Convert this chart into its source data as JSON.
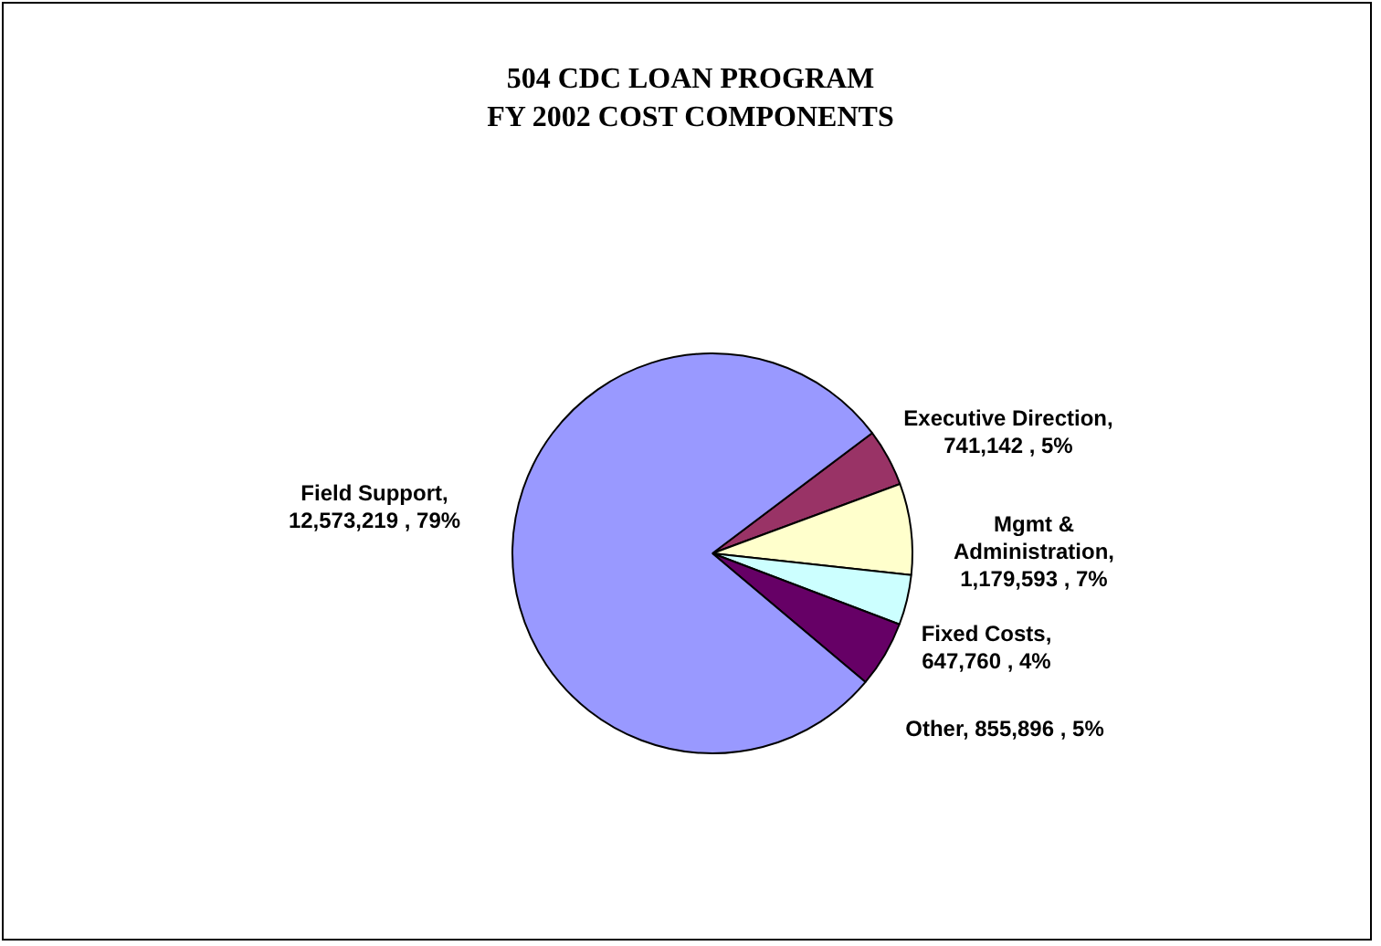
{
  "chart_data": {
    "type": "pie",
    "title": "504 CDC LOAN PROGRAM\nFY 2002 COST COMPONENTS",
    "categories": [
      "Executive Direction",
      "Mgmt & Administration",
      "Fixed Costs",
      "Other",
      "Field Support"
    ],
    "values": [
      741142,
      1179593,
      647760,
      855896,
      12573219
    ],
    "colors": [
      "#993366",
      "#ffffcc",
      "#ccffff",
      "#660066",
      "#9999ff"
    ],
    "value_labels": [
      ", 741,142 , 5%",
      ", 1,179,593 , 7%",
      ", 647,760 , 4%",
      ", 855,896 , 5%",
      ", 12,573,219 , 79%"
    ],
    "legend": false
  }
}
